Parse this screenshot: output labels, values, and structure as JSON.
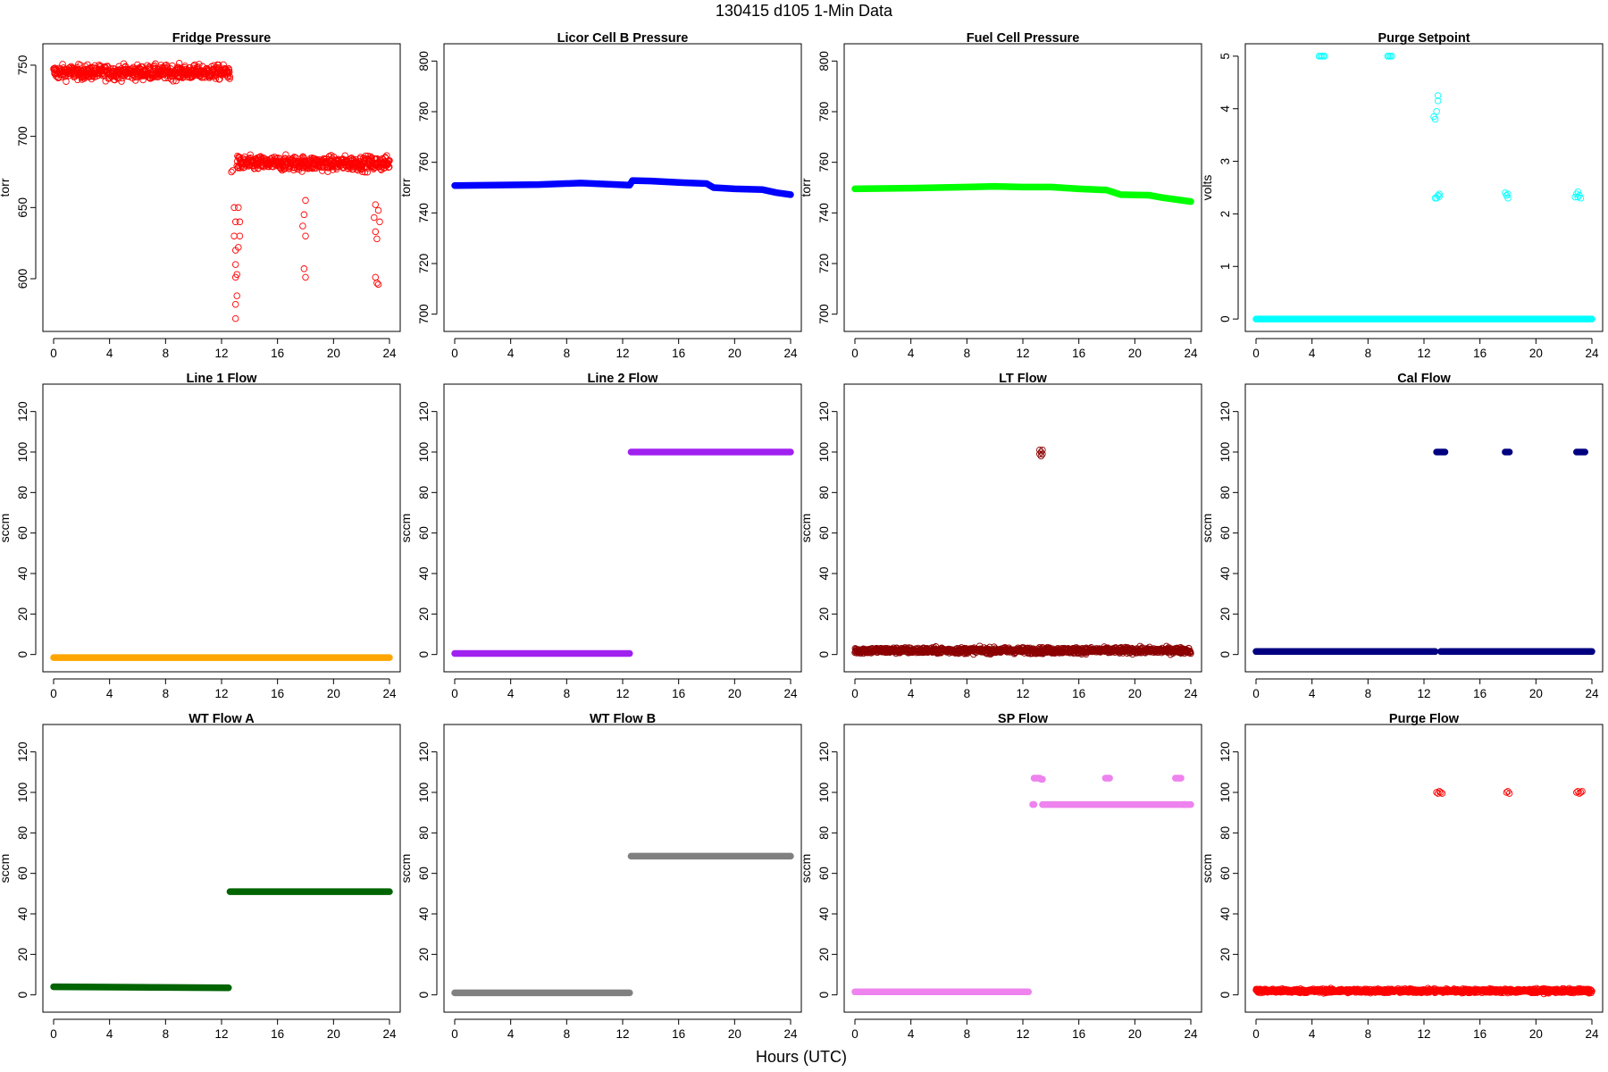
{
  "figure": {
    "title": "130415   d105   1-Min Data",
    "xlabel": "Hours (UTC)"
  },
  "chart_data": [
    {
      "type": "scatter",
      "title": "Fridge Pressure",
      "xlabel": "",
      "ylabel": "torr",
      "color": "#ff0000",
      "marker": "open-circle",
      "xlim": [
        0,
        24
      ],
      "ylim": [
        568,
        760
      ],
      "x_ticks": [
        0,
        4,
        8,
        12,
        16,
        20,
        24
      ],
      "y_ticks": [
        600,
        650,
        700,
        750
      ],
      "segments": [
        {
          "x": [
            0.0,
            12.6
          ],
          "y": 745,
          "noise": 5
        },
        {
          "x": [
            13.1,
            24.0
          ],
          "y": 681,
          "noise": 5
        }
      ],
      "points": [
        [
          12.7,
          675
        ],
        [
          12.8,
          676
        ],
        [
          12.9,
          650
        ],
        [
          13.0,
          640
        ],
        [
          12.9,
          630
        ],
        [
          13.0,
          620
        ],
        [
          13.0,
          610
        ],
        [
          13.1,
          603
        ],
        [
          13.0,
          601
        ],
        [
          13.1,
          588
        ],
        [
          13.0,
          582
        ],
        [
          13.0,
          572
        ],
        [
          13.2,
          650
        ],
        [
          13.3,
          640
        ],
        [
          13.3,
          630
        ],
        [
          13.2,
          622
        ],
        [
          18.0,
          655
        ],
        [
          17.9,
          645
        ],
        [
          17.8,
          637
        ],
        [
          18.0,
          630
        ],
        [
          17.9,
          607
        ],
        [
          18.0,
          601
        ],
        [
          23.0,
          652
        ],
        [
          22.9,
          643
        ],
        [
          23.0,
          633
        ],
        [
          23.1,
          628
        ],
        [
          23.2,
          648
        ],
        [
          23.3,
          640
        ],
        [
          23.0,
          601
        ],
        [
          23.1,
          597
        ],
        [
          23.2,
          596
        ]
      ]
    },
    {
      "type": "scatter",
      "title": "Licor Cell B Pressure",
      "xlabel": "",
      "ylabel": "torr",
      "color": "#0000ff",
      "marker": "filled-circle",
      "xlim": [
        0,
        24
      ],
      "ylim": [
        696,
        804
      ],
      "x_ticks": [
        0,
        4,
        8,
        12,
        16,
        20,
        24
      ],
      "y_ticks": [
        700,
        720,
        740,
        760,
        780,
        800
      ],
      "line": [
        [
          0,
          750.8
        ],
        [
          6,
          751.2
        ],
        [
          9,
          751.8
        ],
        [
          12.5,
          751.0
        ],
        [
          12.7,
          752.8
        ],
        [
          14,
          752.6
        ],
        [
          16,
          752.0
        ],
        [
          18,
          751.6
        ],
        [
          18.5,
          750.0
        ],
        [
          20,
          749.5
        ],
        [
          22,
          749.2
        ],
        [
          23,
          748.0
        ],
        [
          24,
          747.2
        ]
      ]
    },
    {
      "type": "scatter",
      "title": "Fuel Cell Pressure",
      "xlabel": "",
      "ylabel": "torr",
      "color": "#00ff00",
      "marker": "filled-circle",
      "xlim": [
        0,
        24
      ],
      "ylim": [
        696,
        804
      ],
      "x_ticks": [
        0,
        4,
        8,
        12,
        16,
        20,
        24
      ],
      "y_ticks": [
        700,
        720,
        740,
        760,
        780,
        800
      ],
      "line": [
        [
          0,
          749.5
        ],
        [
          4,
          749.8
        ],
        [
          8,
          750.2
        ],
        [
          10,
          750.5
        ],
        [
          12,
          750.2
        ],
        [
          14,
          750.2
        ],
        [
          16,
          749.5
        ],
        [
          18,
          749.0
        ],
        [
          19,
          747.2
        ],
        [
          21,
          747.0
        ],
        [
          22,
          746.0
        ],
        [
          24,
          744.5
        ]
      ]
    },
    {
      "type": "scatter",
      "title": "Purge Setpoint",
      "xlabel": "",
      "ylabel": "volts",
      "color": "#00ffff",
      "marker": "open-circle",
      "xlim": [
        0,
        24
      ],
      "ylim": [
        -0.1,
        5.1
      ],
      "x_ticks": [
        0,
        4,
        8,
        12,
        16,
        20,
        24
      ],
      "y_ticks": [
        0,
        1,
        2,
        3,
        4,
        5
      ],
      "line": [
        [
          0,
          0
        ],
        [
          24,
          0
        ]
      ],
      "points": [
        [
          4.5,
          5
        ],
        [
          4.6,
          5
        ],
        [
          4.7,
          5
        ],
        [
          4.8,
          5
        ],
        [
          4.9,
          5
        ],
        [
          9.4,
          5
        ],
        [
          9.5,
          5
        ],
        [
          9.6,
          5
        ],
        [
          9.7,
          5
        ],
        [
          12.7,
          3.85
        ],
        [
          12.8,
          3.8
        ],
        [
          12.9,
          3.95
        ],
        [
          13.0,
          4.25
        ],
        [
          13.0,
          4.15
        ],
        [
          12.8,
          2.3
        ],
        [
          12.9,
          2.3
        ],
        [
          13.0,
          2.35
        ],
        [
          13.1,
          2.38
        ],
        [
          13.1,
          2.33
        ],
        [
          17.8,
          2.4
        ],
        [
          17.9,
          2.35
        ],
        [
          18.0,
          2.3
        ],
        [
          18.0,
          2.38
        ],
        [
          22.8,
          2.32
        ],
        [
          22.9,
          2.38
        ],
        [
          23.0,
          2.42
        ],
        [
          23.1,
          2.35
        ],
        [
          23.2,
          2.3
        ],
        [
          23.0,
          2.32
        ]
      ]
    },
    {
      "type": "scatter",
      "title": "Line 1 Flow",
      "xlabel": "",
      "ylabel": "sccm",
      "color": "#ffa500",
      "marker": "filled-circle",
      "xlim": [
        0,
        24
      ],
      "ylim": [
        -5,
        130
      ],
      "x_ticks": [
        0,
        4,
        8,
        12,
        16,
        20,
        24
      ],
      "y_ticks": [
        0,
        20,
        40,
        60,
        80,
        100,
        120
      ],
      "line": [
        [
          0,
          -1.5
        ],
        [
          24,
          -1.5
        ]
      ]
    },
    {
      "type": "scatter",
      "title": "Line 2 Flow",
      "xlabel": "",
      "ylabel": "sccm",
      "color": "#a020f0",
      "marker": "filled-circle",
      "xlim": [
        0,
        24
      ],
      "ylim": [
        -5,
        130
      ],
      "x_ticks": [
        0,
        4,
        8,
        12,
        16,
        20,
        24
      ],
      "y_ticks": [
        0,
        20,
        40,
        60,
        80,
        100,
        120
      ],
      "line": [
        [
          0,
          0.5
        ],
        [
          12.5,
          0.5
        ]
      ],
      "line2": [
        [
          12.6,
          100
        ],
        [
          24,
          100
        ]
      ]
    },
    {
      "type": "scatter",
      "title": "LT Flow",
      "xlabel": "",
      "ylabel": "sccm",
      "color": "#8b0000",
      "marker": "open-circle",
      "xlim": [
        0,
        24
      ],
      "ylim": [
        -5,
        130
      ],
      "x_ticks": [
        0,
        4,
        8,
        12,
        16,
        20,
        24
      ],
      "y_ticks": [
        0,
        20,
        40,
        60,
        80,
        100,
        120
      ],
      "segments": [
        {
          "x": [
            0.0,
            24.0
          ],
          "y": 2,
          "noise": 1.5
        }
      ],
      "points": [
        [
          13.2,
          101
        ],
        [
          13.3,
          100
        ],
        [
          13.4,
          99
        ],
        [
          13.3,
          98
        ],
        [
          13.2,
          99
        ],
        [
          13.4,
          101
        ]
      ]
    },
    {
      "type": "scatter",
      "title": "Cal Flow",
      "xlabel": "",
      "ylabel": "sccm",
      "color": "#000080",
      "marker": "filled-circle",
      "xlim": [
        0,
        24
      ],
      "ylim": [
        -5,
        130
      ],
      "x_ticks": [
        0,
        4,
        8,
        12,
        16,
        20,
        24
      ],
      "y_ticks": [
        0,
        20,
        40,
        60,
        80,
        100,
        120
      ],
      "line": [
        [
          0,
          1.5
        ],
        [
          12.8,
          1.5
        ]
      ],
      "line2": [
        [
          13.2,
          1.5
        ],
        [
          24,
          1.5
        ]
      ],
      "points": [
        [
          12.9,
          100
        ],
        [
          13.0,
          100
        ],
        [
          13.1,
          100
        ],
        [
          13.2,
          100
        ],
        [
          13.3,
          100
        ],
        [
          13.4,
          100
        ],
        [
          13.5,
          100
        ],
        [
          17.8,
          100
        ],
        [
          17.9,
          100
        ],
        [
          18.0,
          100
        ],
        [
          18.1,
          100
        ],
        [
          22.9,
          100
        ],
        [
          23.0,
          100
        ],
        [
          23.1,
          100
        ],
        [
          23.2,
          100
        ],
        [
          23.3,
          100
        ],
        [
          23.4,
          100
        ],
        [
          23.5,
          100
        ]
      ]
    },
    {
      "type": "scatter",
      "title": "WT Flow A",
      "xlabel": "",
      "ylabel": "sccm",
      "color": "#006400",
      "marker": "filled-circle",
      "xlim": [
        0,
        24
      ],
      "ylim": [
        -5,
        130
      ],
      "x_ticks": [
        0,
        4,
        8,
        12,
        16,
        20,
        24
      ],
      "y_ticks": [
        0,
        20,
        40,
        60,
        80,
        100,
        120
      ],
      "line": [
        [
          0,
          4
        ],
        [
          12.5,
          3.5
        ]
      ],
      "line2": [
        [
          12.6,
          51
        ],
        [
          24,
          51
        ]
      ]
    },
    {
      "type": "scatter",
      "title": "WT Flow B",
      "xlabel": "",
      "ylabel": "sccm",
      "color": "#808080",
      "marker": "filled-circle",
      "xlim": [
        0,
        24
      ],
      "ylim": [
        -5,
        130
      ],
      "x_ticks": [
        0,
        4,
        8,
        12,
        16,
        20,
        24
      ],
      "y_ticks": [
        0,
        20,
        40,
        60,
        80,
        100,
        120
      ],
      "line": [
        [
          0,
          1
        ],
        [
          12.5,
          1
        ]
      ],
      "line2": [
        [
          12.6,
          68.5
        ],
        [
          24,
          68.5
        ]
      ]
    },
    {
      "type": "scatter",
      "title": "SP Flow",
      "xlabel": "",
      "ylabel": "sccm",
      "color": "#ee82ee",
      "marker": "filled-circle",
      "xlim": [
        0,
        24
      ],
      "ylim": [
        -5,
        130
      ],
      "x_ticks": [
        0,
        4,
        8,
        12,
        16,
        20,
        24
      ],
      "y_ticks": [
        0,
        20,
        40,
        60,
        80,
        100,
        120
      ],
      "line": [
        [
          0,
          1.5
        ],
        [
          12.4,
          1.5
        ]
      ],
      "line2": [
        [
          13.4,
          94
        ],
        [
          24,
          94
        ]
      ],
      "points": [
        [
          12.7,
          94
        ],
        [
          12.8,
          94
        ],
        [
          12.8,
          107
        ],
        [
          12.9,
          107
        ],
        [
          13.0,
          107
        ],
        [
          13.1,
          107
        ],
        [
          13.2,
          107
        ],
        [
          13.3,
          106.5
        ],
        [
          13.4,
          106.5
        ],
        [
          17.9,
          107
        ],
        [
          18.0,
          107
        ],
        [
          18.1,
          107
        ],
        [
          18.2,
          107
        ],
        [
          22.9,
          107
        ],
        [
          23.0,
          107
        ],
        [
          23.1,
          107
        ],
        [
          23.2,
          107
        ],
        [
          23.3,
          107
        ],
        [
          23.5,
          94
        ],
        [
          23.6,
          94
        ]
      ]
    },
    {
      "type": "scatter",
      "title": "Purge Flow",
      "xlabel": "",
      "ylabel": "sccm",
      "color": "#ff0000",
      "marker": "open-circle",
      "xlim": [
        0,
        24
      ],
      "ylim": [
        -5,
        130
      ],
      "x_ticks": [
        0,
        4,
        8,
        12,
        16,
        20,
        24
      ],
      "y_ticks": [
        0,
        20,
        40,
        60,
        80,
        100,
        120
      ],
      "segments": [
        {
          "x": [
            0.0,
            24.0
          ],
          "y": 2,
          "noise": 1.0
        }
      ],
      "points": [
        [
          12.9,
          100
        ],
        [
          13.0,
          99.5
        ],
        [
          13.1,
          100.5
        ],
        [
          13.2,
          100
        ],
        [
          13.3,
          99.5
        ],
        [
          17.9,
          100
        ],
        [
          18.0,
          100.5
        ],
        [
          18.1,
          99.5
        ],
        [
          22.9,
          100
        ],
        [
          23.0,
          100.5
        ],
        [
          23.1,
          99.5
        ],
        [
          23.2,
          100
        ],
        [
          23.3,
          100.5
        ]
      ]
    }
  ]
}
